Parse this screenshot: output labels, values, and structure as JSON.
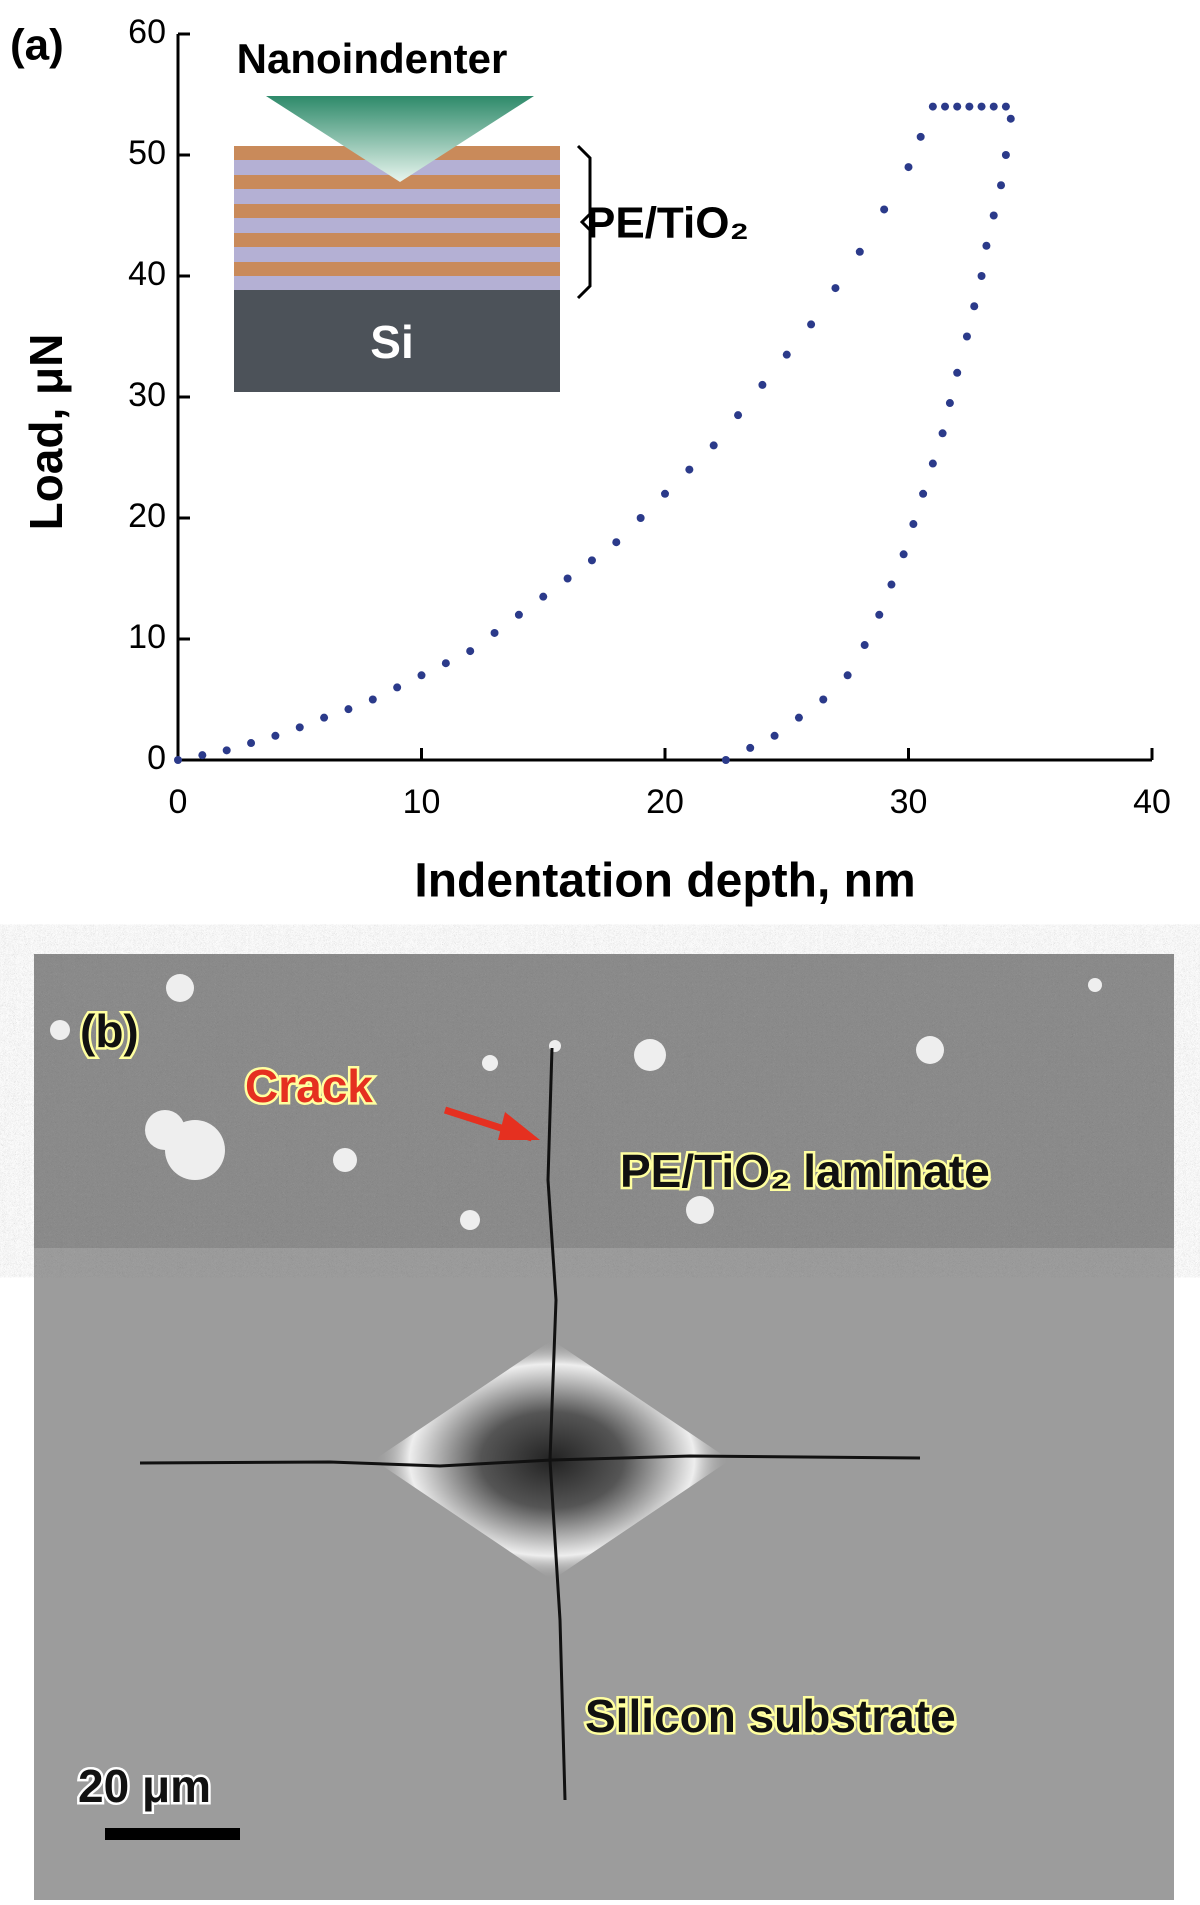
{
  "chart_data": {
    "type": "scatter",
    "panel_label": "(a)",
    "x_label": "Indentation depth, nm",
    "y_label": "Load, μN",
    "xlim": [
      0,
      40
    ],
    "ylim": [
      0,
      60
    ],
    "xticks": [
      0,
      10,
      20,
      30,
      40
    ],
    "yticks": [
      0,
      10,
      20,
      30,
      40,
      50,
      60
    ],
    "inset": {
      "indenter": "Nanoindenter",
      "film": "PE/TiO₂",
      "substrate": "Si"
    },
    "series": [
      {
        "color": "#2b3a8a",
        "x": [
          0,
          1,
          2,
          3,
          4,
          5,
          6,
          7,
          8,
          9,
          10,
          11,
          12,
          13,
          14,
          15,
          16,
          17,
          18,
          19,
          20,
          21,
          22,
          23,
          24,
          25,
          26,
          27,
          28,
          29,
          30,
          30.5,
          31
        ],
        "values": [
          0,
          0.4,
          0.8,
          1.4,
          2,
          2.7,
          3.5,
          4.2,
          5,
          6,
          7,
          8,
          9,
          10.5,
          12,
          13.5,
          15,
          16.5,
          18,
          20,
          22,
          24,
          26,
          28.5,
          31,
          33.5,
          36,
          39,
          42,
          45.5,
          49,
          51.5,
          54
        ]
      },
      {
        "color": "#2b3a8a",
        "x": [
          31.5,
          32,
          32.5,
          33,
          33.5,
          34,
          34.2,
          34,
          33.8,
          33.5,
          33.2,
          33,
          32.7,
          32.4,
          32,
          31.7,
          31.4,
          31,
          30.6,
          30.2,
          29.8,
          29.3,
          28.8,
          28.2,
          27.5,
          26.5,
          25.5,
          24.5,
          23.5,
          22.5
        ],
        "values": [
          54,
          54,
          54,
          54,
          54,
          54,
          53,
          50,
          47.5,
          45,
          42.5,
          40,
          37.5,
          35,
          32,
          29.5,
          27,
          24.5,
          22,
          19.5,
          17,
          14.5,
          12,
          9.5,
          7,
          5,
          3.5,
          2,
          1,
          0
        ]
      }
    ]
  },
  "micrograph": {
    "panel_label": "(b)",
    "crack": "Crack",
    "film": "PE/TiO₂ laminate",
    "substrate": "Silicon substrate",
    "scale_bar": "20 μm"
  }
}
